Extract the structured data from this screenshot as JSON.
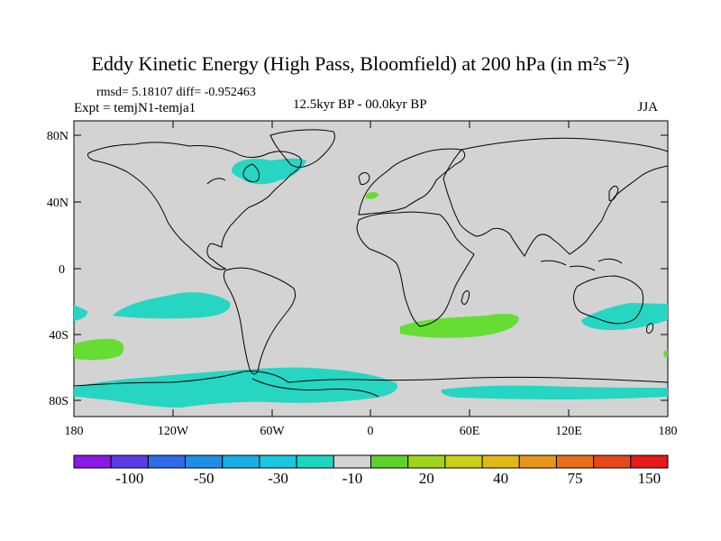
{
  "title": "Eddy Kinetic Energy (High Pass, Bloomfield) at 200 hPa (in m²s⁻²)",
  "stats": "rmsd= 5.18107 diff= -0.952463",
  "experiment": "Expt = temjN1-temja1",
  "period": "12.5kyr BP - 00.0kyr BP",
  "season": "JJA",
  "map": {
    "background_color": "#d3d3d3",
    "lat_ticks": [
      "80N",
      "40N",
      "0",
      "40S",
      "80S"
    ],
    "lon_ticks": [
      "180",
      "120W",
      "60W",
      "0",
      "60E",
      "120E",
      "180"
    ]
  },
  "colorbar": {
    "colors": [
      "#8a19e6",
      "#5a3ce6",
      "#2f6be6",
      "#1f8fe6",
      "#19aee6",
      "#19c8e0",
      "#1ed6c0",
      "#d3d3d3",
      "#5ed02a",
      "#9ed41a",
      "#c8d01a",
      "#e0b81a",
      "#e6961a",
      "#e6701a",
      "#e6481a",
      "#e61a1a"
    ],
    "labels": [
      "-100",
      "-50",
      "-30",
      "-10",
      "20",
      "40",
      "75",
      "150"
    ]
  },
  "legend": {
    "teal_color": "#26d6c2",
    "green_color": "#66dd33",
    "coast_color": "#000000"
  }
}
